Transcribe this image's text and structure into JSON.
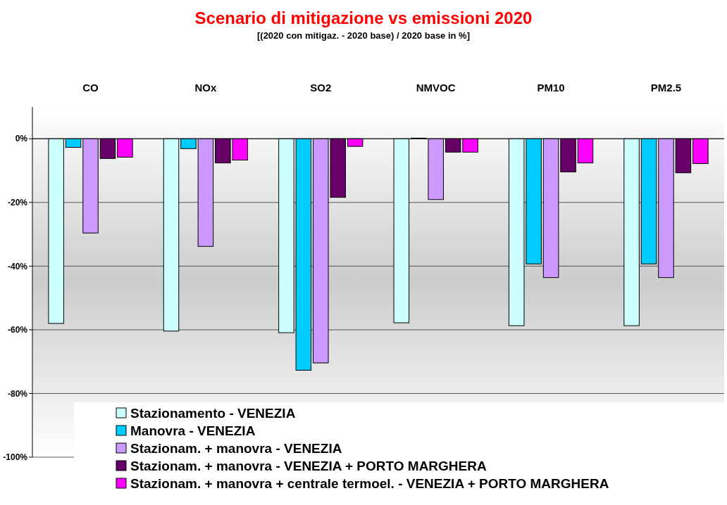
{
  "chart_data": {
    "type": "bar",
    "title": "Scenario di mitigazione vs emissioni 2020",
    "subtitle": "[(2020 con mitigaz. - 2020 base) / 2020 base in %]",
    "categories": [
      "CO",
      "NOx",
      "SO2",
      "NMVOC",
      "PM10",
      "PM2.5"
    ],
    "series": [
      {
        "name": "Stazionamento - VENEZIA",
        "color": "#ccffff",
        "values": [
          -58,
          -60.4,
          -60.9,
          -57.8,
          -58.7,
          -58.7
        ]
      },
      {
        "name": "Manovra - VENEZIA",
        "color": "#00ccff",
        "values": [
          -2.7,
          -3.1,
          -72.7,
          0.2,
          -39.3,
          -39.3
        ]
      },
      {
        "name": "Stazionam. + manovra - VENEZIA",
        "color": "#cc99ff",
        "values": [
          -29.6,
          -33.8,
          -70.4,
          -19.1,
          -43.6,
          -43.6
        ]
      },
      {
        "name": "Stazionam. + manovra  - VENEZIA + PORTO MARGHERA",
        "color": "#660066",
        "values": [
          -6.2,
          -7.6,
          -18.4,
          -4.2,
          -10.4,
          -10.7
        ]
      },
      {
        "name": "Stazionam. + manovra + centrale termoel.  - VENEZIA + PORTO MARGHERA",
        "color": "#ff00ff",
        "values": [
          -5.8,
          -6.7,
          -2.4,
          -4.2,
          -7.6,
          -7.8
        ]
      }
    ],
    "ylim": [
      -100,
      10
    ],
    "yticks": [
      {
        "value": 0,
        "label": "0%"
      },
      {
        "value": -20,
        "label": "-20%"
      },
      {
        "value": -40,
        "label": "-40%"
      },
      {
        "value": -60,
        "label": "-60%"
      },
      {
        "value": -80,
        "label": "-80%"
      },
      {
        "value": -100,
        "label": "-100%"
      }
    ],
    "grid": "y",
    "legend": "bottom"
  }
}
